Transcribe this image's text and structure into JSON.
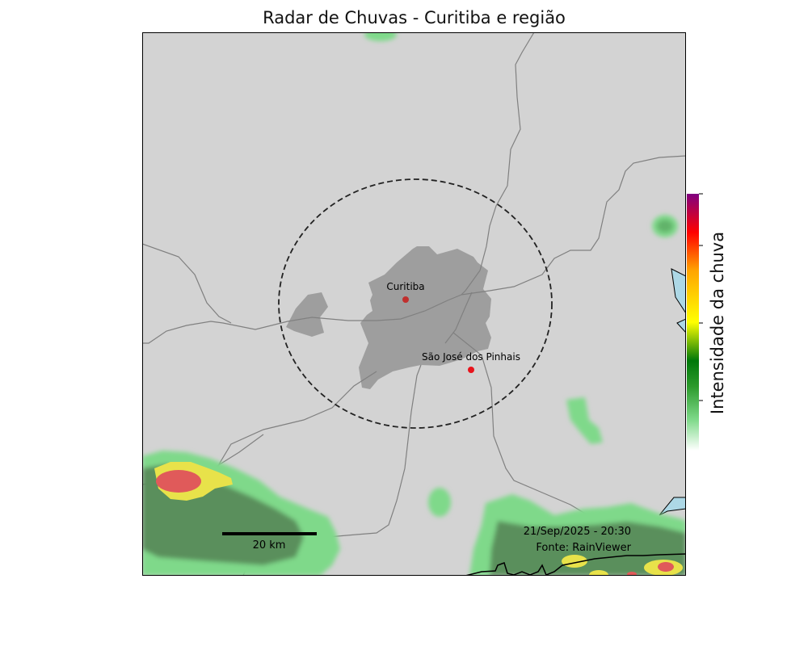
{
  "map": {
    "title": "Radar de Chuvas - Curitiba e região",
    "cities": [
      {
        "name": "Curitiba",
        "color": "#c0302e"
      },
      {
        "name": "São José dos Pinhais",
        "color": "#e8141c"
      }
    ],
    "scale_bar_label": "20 km",
    "timestamp": "21/Sep/2025 - 20:30",
    "source": "Fonte: RainViewer",
    "colorbar_label": "Intensidade da chuva",
    "colors": {
      "land": "#d3d3d3",
      "urban_area": "#9e9e9e",
      "roads": "#808080",
      "water": "#add8e6",
      "rain_light": "#7fd98a",
      "rain_moderate": "#5a8f5c",
      "rain_heavy": "#e8e24a",
      "rain_intense": "#e05a5a"
    },
    "colorbar_stops": [
      "#ffffff",
      "#7fd98a",
      "#2c9a2c",
      "#00780a",
      "#ffff00",
      "#ffa500",
      "#ff0000",
      "#800080"
    ]
  }
}
